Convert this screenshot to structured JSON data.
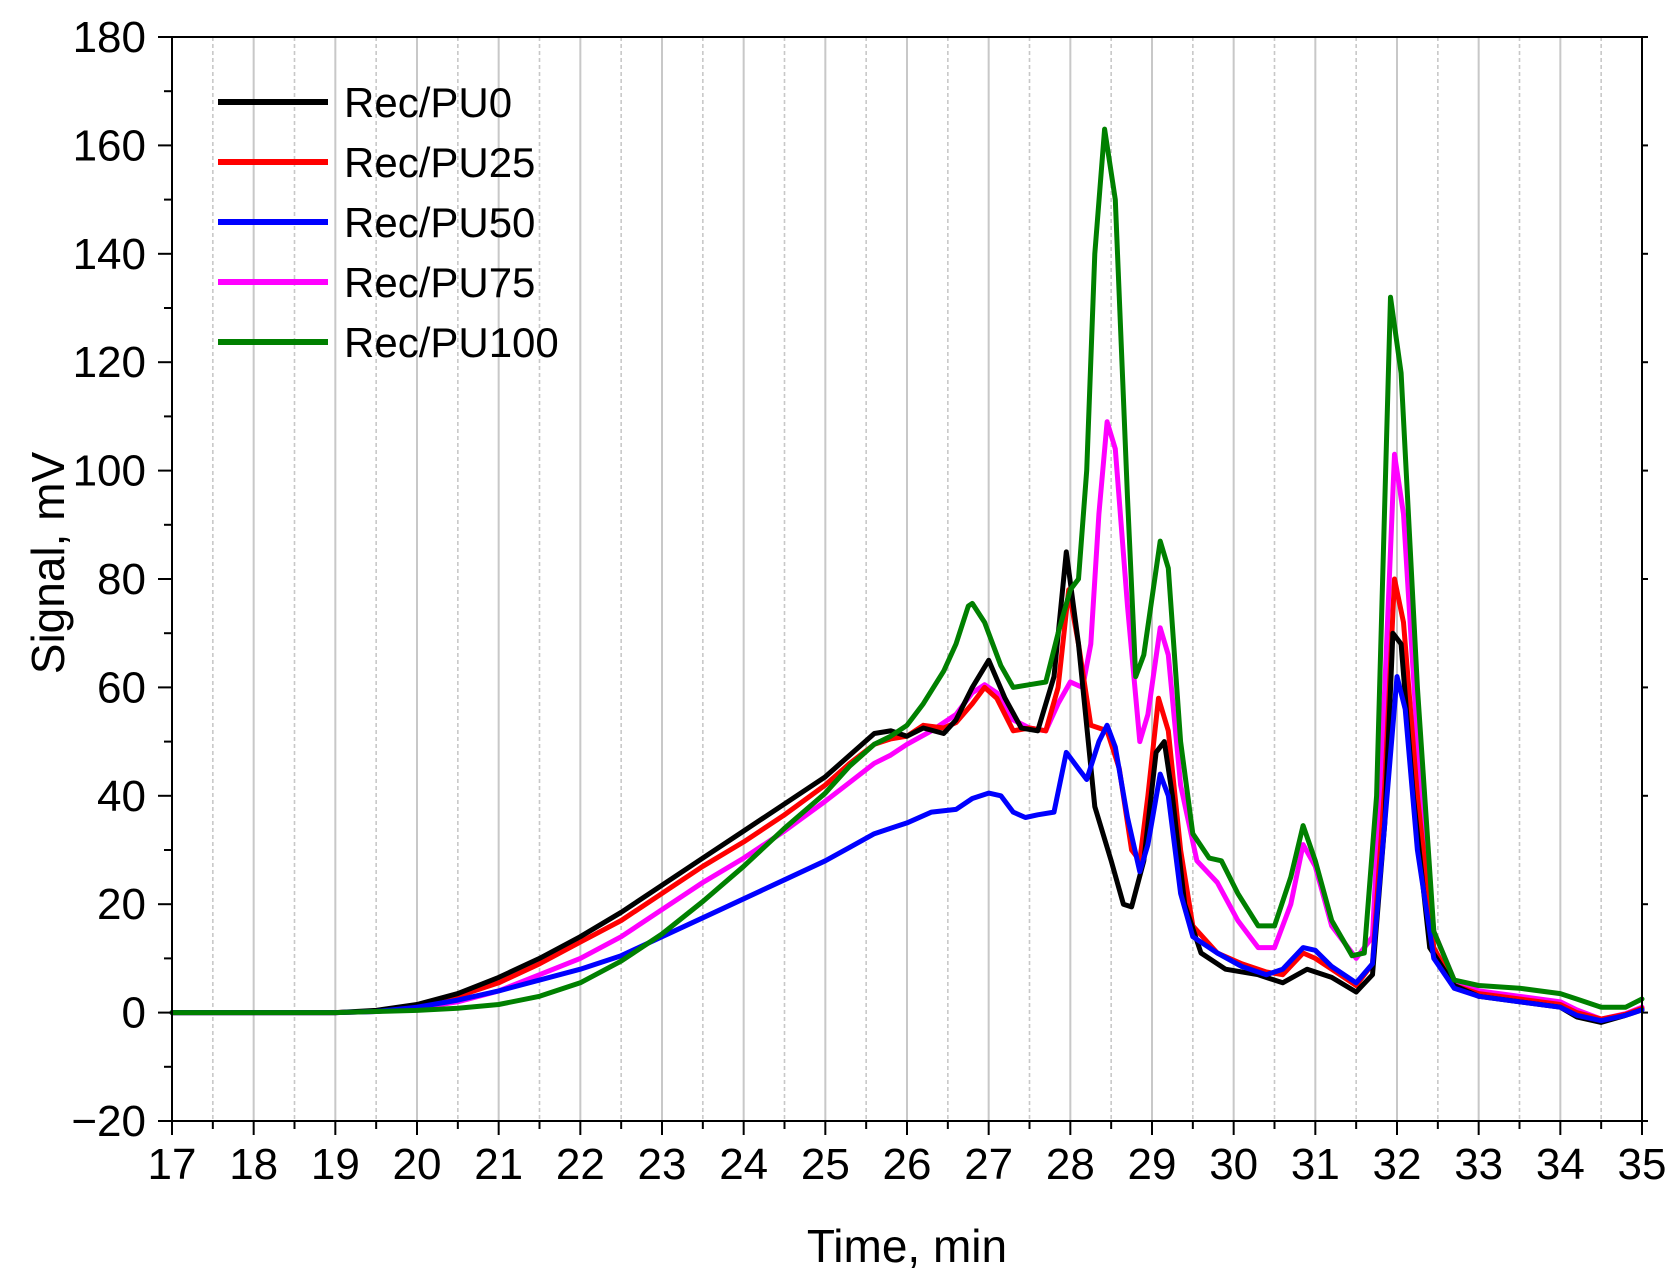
{
  "chart_data": {
    "type": "line",
    "xlabel": "Time, min",
    "ylabel": "Signal, mV",
    "xlim": [
      17,
      35
    ],
    "ylim": [
      -20,
      180
    ],
    "x_ticks": [
      17,
      18,
      19,
      20,
      21,
      22,
      23,
      24,
      25,
      26,
      27,
      28,
      29,
      30,
      31,
      32,
      33,
      34,
      35
    ],
    "y_ticks": [
      -20,
      0,
      20,
      40,
      60,
      80,
      100,
      120,
      140,
      160,
      180
    ],
    "x_tick_labels": [
      "17",
      "18",
      "19",
      "20",
      "21",
      "22",
      "23",
      "24",
      "25",
      "26",
      "27",
      "28",
      "29",
      "30",
      "31",
      "32",
      "33",
      "34",
      "35"
    ],
    "y_tick_labels": [
      "−20",
      "0",
      "20",
      "40",
      "60",
      "80",
      "100",
      "120",
      "140",
      "160",
      "180"
    ],
    "grid": "vertical, every 0.5 min (dashed at half-minutes)",
    "legend_position": "top-left",
    "series": [
      {
        "name": "Rec/PU0",
        "color": "#000000",
        "points": [
          [
            17,
            0
          ],
          [
            19,
            0
          ],
          [
            19.5,
            0.4
          ],
          [
            20,
            1.5
          ],
          [
            20.5,
            3.5
          ],
          [
            21,
            6.5
          ],
          [
            21.5,
            10
          ],
          [
            22,
            14
          ],
          [
            22.5,
            18.5
          ],
          [
            23,
            23.5
          ],
          [
            23.5,
            28.5
          ],
          [
            24,
            33.5
          ],
          [
            24.5,
            38.5
          ],
          [
            25,
            43.5
          ],
          [
            25.3,
            47.5
          ],
          [
            25.6,
            51.5
          ],
          [
            25.8,
            52
          ],
          [
            26,
            51
          ],
          [
            26.2,
            52.5
          ],
          [
            26.45,
            51.5
          ],
          [
            26.6,
            54
          ],
          [
            26.8,
            60
          ],
          [
            27,
            65
          ],
          [
            27.2,
            58
          ],
          [
            27.4,
            52.5
          ],
          [
            27.6,
            52
          ],
          [
            27.8,
            62
          ],
          [
            27.95,
            85
          ],
          [
            28.1,
            68
          ],
          [
            28.3,
            38
          ],
          [
            28.5,
            28
          ],
          [
            28.65,
            20
          ],
          [
            28.75,
            19.5
          ],
          [
            28.9,
            28
          ],
          [
            29.05,
            48
          ],
          [
            29.15,
            50
          ],
          [
            29.25,
            40
          ],
          [
            29.4,
            20
          ],
          [
            29.6,
            11
          ],
          [
            29.9,
            8
          ],
          [
            30.3,
            7
          ],
          [
            30.6,
            5.5
          ],
          [
            30.9,
            8
          ],
          [
            31.2,
            6.5
          ],
          [
            31.5,
            3.8
          ],
          [
            31.7,
            7
          ],
          [
            31.85,
            35
          ],
          [
            31.95,
            70
          ],
          [
            32.05,
            68
          ],
          [
            32.2,
            40
          ],
          [
            32.4,
            12
          ],
          [
            32.7,
            5
          ],
          [
            33,
            3
          ],
          [
            33.5,
            2
          ],
          [
            34,
            1
          ],
          [
            34.2,
            -0.8
          ],
          [
            34.5,
            -1.8
          ],
          [
            34.8,
            -0.5
          ],
          [
            35,
            0.5
          ]
        ]
      },
      {
        "name": "Rec/PU25",
        "color": "#ff0000",
        "points": [
          [
            17,
            0
          ],
          [
            19,
            0
          ],
          [
            19.5,
            0.3
          ],
          [
            20,
            1.2
          ],
          [
            20.5,
            3
          ],
          [
            21,
            5.5
          ],
          [
            21.5,
            9
          ],
          [
            22,
            13
          ],
          [
            22.5,
            17
          ],
          [
            23,
            22
          ],
          [
            23.5,
            27
          ],
          [
            24,
            31.5
          ],
          [
            24.5,
            36.5
          ],
          [
            25,
            42
          ],
          [
            25.3,
            46
          ],
          [
            25.6,
            49.5
          ],
          [
            25.8,
            50.5
          ],
          [
            26,
            51
          ],
          [
            26.2,
            53
          ],
          [
            26.45,
            52.5
          ],
          [
            26.6,
            53.5
          ],
          [
            26.8,
            57
          ],
          [
            26.95,
            60
          ],
          [
            27.1,
            58
          ],
          [
            27.3,
            52
          ],
          [
            27.5,
            52.5
          ],
          [
            27.7,
            52
          ],
          [
            27.85,
            60
          ],
          [
            27.98,
            78
          ],
          [
            28.1,
            68
          ],
          [
            28.25,
            53
          ],
          [
            28.45,
            52
          ],
          [
            28.6,
            45
          ],
          [
            28.75,
            30
          ],
          [
            28.85,
            28
          ],
          [
            28.95,
            40
          ],
          [
            29.08,
            58
          ],
          [
            29.2,
            52
          ],
          [
            29.35,
            30
          ],
          [
            29.5,
            16
          ],
          [
            29.8,
            11
          ],
          [
            30.1,
            9
          ],
          [
            30.4,
            7.5
          ],
          [
            30.6,
            7
          ],
          [
            30.85,
            11
          ],
          [
            31,
            10
          ],
          [
            31.2,
            8
          ],
          [
            31.5,
            5
          ],
          [
            31.7,
            9
          ],
          [
            31.85,
            42
          ],
          [
            31.97,
            80
          ],
          [
            32.08,
            72
          ],
          [
            32.25,
            40
          ],
          [
            32.45,
            12
          ],
          [
            32.7,
            5
          ],
          [
            33,
            3.5
          ],
          [
            33.5,
            2.5
          ],
          [
            34,
            1.5
          ],
          [
            34.2,
            0
          ],
          [
            34.5,
            -1.2
          ],
          [
            34.8,
            -0.3
          ],
          [
            35,
            0.8
          ]
        ]
      },
      {
        "name": "Rec/PU50",
        "color": "#0000ff",
        "points": [
          [
            17,
            0
          ],
          [
            19,
            0
          ],
          [
            19.5,
            0.2
          ],
          [
            20,
            1
          ],
          [
            20.5,
            2.3
          ],
          [
            21,
            4
          ],
          [
            21.5,
            6
          ],
          [
            22,
            8
          ],
          [
            22.5,
            10.5
          ],
          [
            23,
            14
          ],
          [
            23.5,
            17.5
          ],
          [
            24,
            21
          ],
          [
            24.5,
            24.5
          ],
          [
            25,
            28
          ],
          [
            25.3,
            30.5
          ],
          [
            25.6,
            33
          ],
          [
            25.8,
            34
          ],
          [
            26,
            35
          ],
          [
            26.3,
            37
          ],
          [
            26.6,
            37.5
          ],
          [
            26.8,
            39.5
          ],
          [
            27,
            40.5
          ],
          [
            27.15,
            40
          ],
          [
            27.3,
            37
          ],
          [
            27.45,
            36
          ],
          [
            27.6,
            36.5
          ],
          [
            27.8,
            37
          ],
          [
            27.95,
            48
          ],
          [
            28.1,
            45
          ],
          [
            28.2,
            43
          ],
          [
            28.35,
            50
          ],
          [
            28.45,
            53
          ],
          [
            28.55,
            49
          ],
          [
            28.7,
            36
          ],
          [
            28.85,
            26
          ],
          [
            28.95,
            31
          ],
          [
            29.1,
            44
          ],
          [
            29.2,
            40
          ],
          [
            29.35,
            22
          ],
          [
            29.5,
            14
          ],
          [
            29.8,
            11
          ],
          [
            30.1,
            8.5
          ],
          [
            30.4,
            7
          ],
          [
            30.6,
            8
          ],
          [
            30.85,
            12
          ],
          [
            31,
            11.5
          ],
          [
            31.2,
            8.5
          ],
          [
            31.5,
            5.5
          ],
          [
            31.7,
            9
          ],
          [
            31.85,
            35
          ],
          [
            32,
            62
          ],
          [
            32.1,
            56
          ],
          [
            32.25,
            30
          ],
          [
            32.45,
            10
          ],
          [
            32.7,
            4.5
          ],
          [
            33,
            3
          ],
          [
            33.5,
            2
          ],
          [
            34,
            1
          ],
          [
            34.2,
            -0.5
          ],
          [
            34.5,
            -1.5
          ],
          [
            34.8,
            -0.5
          ],
          [
            35,
            0.5
          ]
        ]
      },
      {
        "name": "Rec/PU75",
        "color": "#ff00ff",
        "points": [
          [
            17,
            0
          ],
          [
            19,
            0
          ],
          [
            19.5,
            0.2
          ],
          [
            20,
            0.8
          ],
          [
            20.5,
            2
          ],
          [
            21,
            4
          ],
          [
            21.5,
            7
          ],
          [
            22,
            10
          ],
          [
            22.5,
            14
          ],
          [
            23,
            19
          ],
          [
            23.5,
            24
          ],
          [
            24,
            28.5
          ],
          [
            24.5,
            33.5
          ],
          [
            25,
            39
          ],
          [
            25.3,
            42.5
          ],
          [
            25.6,
            46
          ],
          [
            25.8,
            47.5
          ],
          [
            26,
            49.5
          ],
          [
            26.3,
            52
          ],
          [
            26.6,
            55
          ],
          [
            26.8,
            59
          ],
          [
            26.95,
            60.5
          ],
          [
            27.1,
            59
          ],
          [
            27.3,
            54
          ],
          [
            27.5,
            52.5
          ],
          [
            27.7,
            52
          ],
          [
            27.85,
            57
          ],
          [
            28,
            61
          ],
          [
            28.15,
            60
          ],
          [
            28.25,
            68
          ],
          [
            28.35,
            92
          ],
          [
            28.45,
            109
          ],
          [
            28.55,
            104
          ],
          [
            28.7,
            75
          ],
          [
            28.85,
            50
          ],
          [
            28.95,
            55
          ],
          [
            29.1,
            71
          ],
          [
            29.2,
            66
          ],
          [
            29.35,
            42
          ],
          [
            29.55,
            28
          ],
          [
            29.8,
            24
          ],
          [
            30.05,
            17
          ],
          [
            30.3,
            12
          ],
          [
            30.5,
            12
          ],
          [
            30.7,
            20
          ],
          [
            30.85,
            31
          ],
          [
            31,
            27
          ],
          [
            31.2,
            16
          ],
          [
            31.5,
            10
          ],
          [
            31.7,
            14
          ],
          [
            31.85,
            60
          ],
          [
            31.97,
            103
          ],
          [
            32.08,
            92
          ],
          [
            32.25,
            50
          ],
          [
            32.45,
            15
          ],
          [
            32.7,
            6
          ],
          [
            33,
            4
          ],
          [
            33.5,
            3
          ],
          [
            34,
            2
          ],
          [
            34.2,
            0.5
          ],
          [
            34.5,
            -1.2
          ],
          [
            34.8,
            -0.2
          ],
          [
            35,
            1
          ]
        ]
      },
      {
        "name": "Rec/PU100",
        "color": "#008000",
        "points": [
          [
            17,
            0
          ],
          [
            19,
            0
          ],
          [
            19.5,
            0.2
          ],
          [
            20,
            0.4
          ],
          [
            20.5,
            0.8
          ],
          [
            21,
            1.5
          ],
          [
            21.5,
            3
          ],
          [
            22,
            5.5
          ],
          [
            22.5,
            9.5
          ],
          [
            23,
            14.5
          ],
          [
            23.5,
            20.5
          ],
          [
            24,
            27
          ],
          [
            24.5,
            34
          ],
          [
            25,
            40.5
          ],
          [
            25.3,
            45.5
          ],
          [
            25.6,
            49.5
          ],
          [
            25.8,
            51
          ],
          [
            26,
            53
          ],
          [
            26.2,
            57
          ],
          [
            26.45,
            63
          ],
          [
            26.6,
            68
          ],
          [
            26.75,
            75
          ],
          [
            26.8,
            75.5
          ],
          [
            26.95,
            72
          ],
          [
            27.15,
            64
          ],
          [
            27.3,
            60
          ],
          [
            27.5,
            60.5
          ],
          [
            27.7,
            61
          ],
          [
            27.85,
            70
          ],
          [
            28,
            78
          ],
          [
            28.1,
            80
          ],
          [
            28.2,
            100
          ],
          [
            28.3,
            140
          ],
          [
            28.42,
            163
          ],
          [
            28.55,
            150
          ],
          [
            28.7,
            95
          ],
          [
            28.8,
            62
          ],
          [
            28.9,
            66
          ],
          [
            29.1,
            87
          ],
          [
            29.2,
            82
          ],
          [
            29.35,
            50
          ],
          [
            29.5,
            33
          ],
          [
            29.7,
            28.5
          ],
          [
            29.85,
            28
          ],
          [
            30.05,
            22
          ],
          [
            30.3,
            16
          ],
          [
            30.5,
            16
          ],
          [
            30.7,
            25
          ],
          [
            30.85,
            34.5
          ],
          [
            31,
            28
          ],
          [
            31.2,
            17
          ],
          [
            31.45,
            10.5
          ],
          [
            31.6,
            11
          ],
          [
            31.75,
            40
          ],
          [
            31.92,
            132
          ],
          [
            32.05,
            118
          ],
          [
            32.25,
            60
          ],
          [
            32.45,
            15
          ],
          [
            32.7,
            6
          ],
          [
            33,
            5
          ],
          [
            33.5,
            4.5
          ],
          [
            34,
            3.5
          ],
          [
            34.2,
            2.5
          ],
          [
            34.5,
            1
          ],
          [
            34.8,
            1
          ],
          [
            35,
            2.5
          ]
        ]
      }
    ]
  }
}
